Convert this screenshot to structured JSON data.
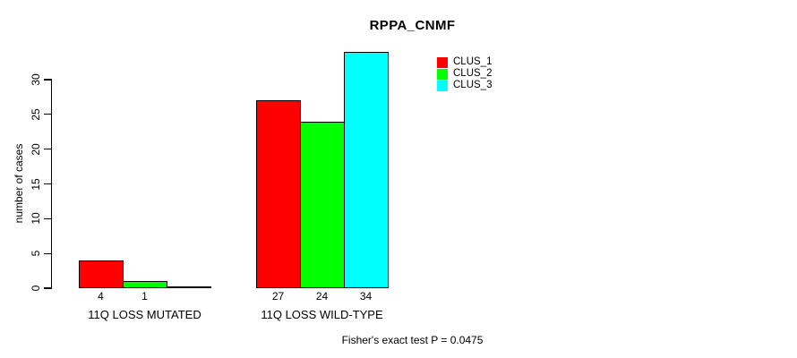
{
  "chart_data": {
    "type": "bar",
    "title": "RPPA_CNMF",
    "ylabel": "number of cases",
    "xlabel": "",
    "groups": [
      "11Q LOSS MUTATED",
      "11Q LOSS WILD-TYPE"
    ],
    "series": [
      {
        "name": "CLUS_1",
        "color": "#ff0000",
        "values": [
          4,
          27
        ]
      },
      {
        "name": "CLUS_2",
        "color": "#00ff00",
        "values": [
          1,
          24
        ]
      },
      {
        "name": "CLUS_3",
        "color": "#00ffff",
        "values": [
          0,
          34
        ]
      }
    ],
    "bar_labels": [
      [
        "4",
        "1",
        ""
      ],
      [
        "27",
        "24",
        "34"
      ]
    ],
    "yticks": [
      0,
      5,
      10,
      15,
      20,
      25,
      30
    ],
    "ylim": [
      0,
      30
    ],
    "grid": false,
    "legend_position": "top-right",
    "annotation": "Fisher's exact test P = 0.0475",
    "background_color": "#ffffff",
    "axis_color": "#000000"
  }
}
